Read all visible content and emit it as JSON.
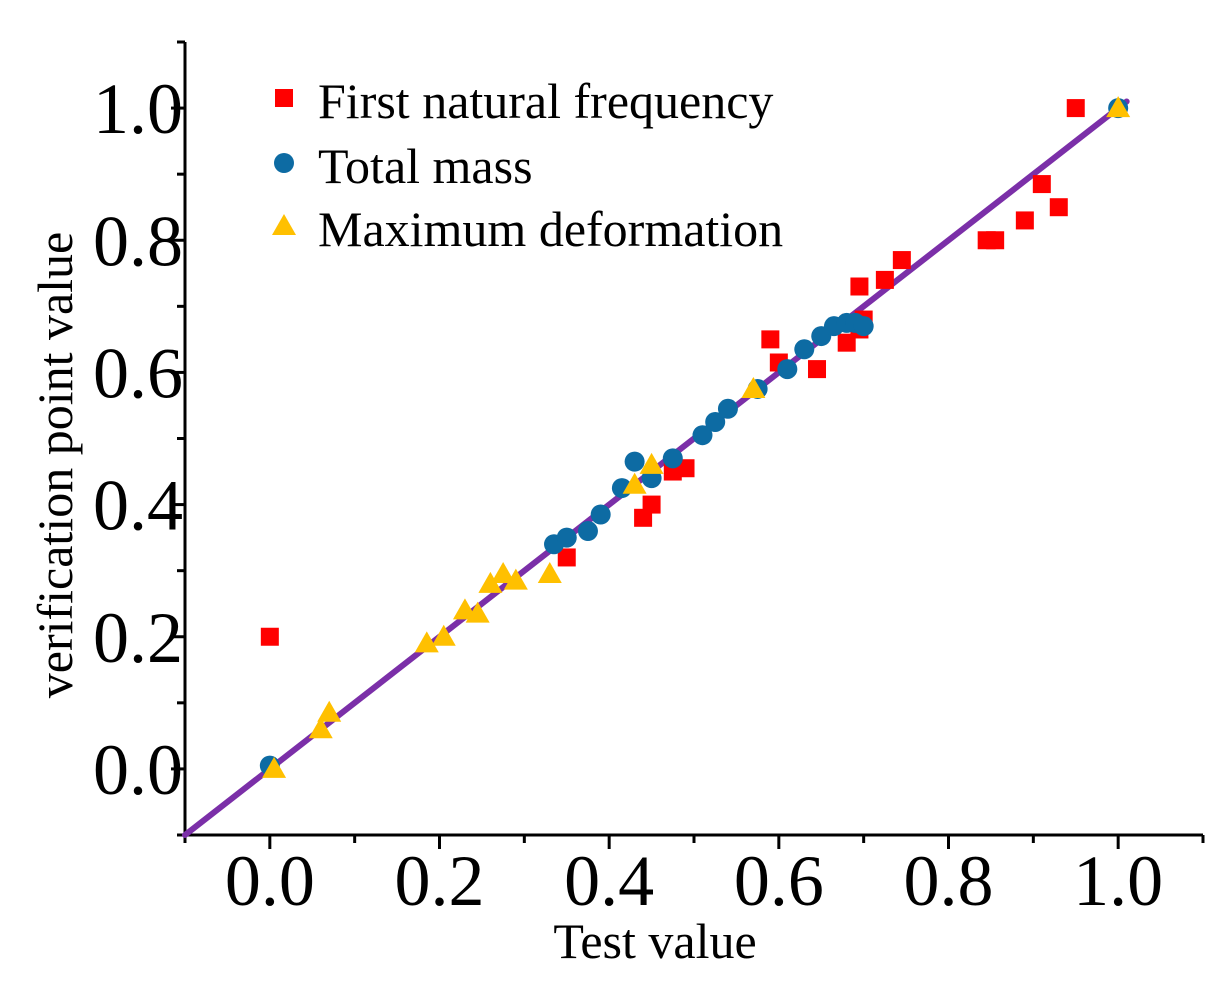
{
  "chart_data": {
    "type": "scatter",
    "title": "",
    "xlabel": "Test value",
    "ylabel": "verification point value",
    "xlim": [
      -0.1,
      1.1
    ],
    "ylim": [
      -0.1,
      1.1
    ],
    "x_ticks": [
      0.0,
      0.2,
      0.4,
      0.6,
      0.8,
      1.0
    ],
    "y_ticks": [
      0.0,
      0.2,
      0.4,
      0.6,
      0.8,
      1.0
    ],
    "x_tick_labels": [
      "0.0",
      "0.2",
      "0.4",
      "0.6",
      "0.8",
      "1.0"
    ],
    "y_tick_labels": [
      "0.0",
      "0.2",
      "0.4",
      "0.6",
      "0.8",
      "1.0"
    ],
    "legend_position": "top-left",
    "series": [
      {
        "name": "First natural frequency",
        "marker": "square",
        "color": "#ff0000",
        "points": [
          [
            0.0,
            0.2
          ],
          [
            0.35,
            0.32
          ],
          [
            0.44,
            0.38
          ],
          [
            0.45,
            0.4
          ],
          [
            0.475,
            0.45
          ],
          [
            0.49,
            0.455
          ],
          [
            0.59,
            0.65
          ],
          [
            0.6,
            0.615
          ],
          [
            0.645,
            0.605
          ],
          [
            0.68,
            0.645
          ],
          [
            0.685,
            0.675
          ],
          [
            0.695,
            0.665
          ],
          [
            0.7,
            0.68
          ],
          [
            0.695,
            0.73
          ],
          [
            0.725,
            0.74
          ],
          [
            0.745,
            0.77
          ],
          [
            0.845,
            0.8
          ],
          [
            0.855,
            0.8
          ],
          [
            0.89,
            0.83
          ],
          [
            0.91,
            0.885
          ],
          [
            0.93,
            0.85
          ],
          [
            0.95,
            1.0
          ]
        ]
      },
      {
        "name": "Total mass",
        "marker": "circle",
        "color": "#0d6ba3",
        "points": [
          [
            0.0,
            0.005
          ],
          [
            0.335,
            0.34
          ],
          [
            0.35,
            0.35
          ],
          [
            0.375,
            0.36
          ],
          [
            0.39,
            0.385
          ],
          [
            0.415,
            0.425
          ],
          [
            0.43,
            0.465
          ],
          [
            0.45,
            0.44
          ],
          [
            0.475,
            0.47
          ],
          [
            0.51,
            0.505
          ],
          [
            0.525,
            0.525
          ],
          [
            0.54,
            0.545
          ],
          [
            0.575,
            0.575
          ],
          [
            0.61,
            0.605
          ],
          [
            0.63,
            0.635
          ],
          [
            0.65,
            0.655
          ],
          [
            0.665,
            0.67
          ],
          [
            0.68,
            0.675
          ],
          [
            0.69,
            0.675
          ],
          [
            0.7,
            0.67
          ],
          [
            1.0,
            1.0
          ]
        ]
      },
      {
        "name": "Maximum deformation",
        "marker": "triangle",
        "color": "#ffc000",
        "points": [
          [
            0.005,
            0.0
          ],
          [
            0.06,
            0.06
          ],
          [
            0.07,
            0.085
          ],
          [
            0.185,
            0.19
          ],
          [
            0.205,
            0.2
          ],
          [
            0.23,
            0.24
          ],
          [
            0.245,
            0.235
          ],
          [
            0.26,
            0.28
          ],
          [
            0.275,
            0.295
          ],
          [
            0.29,
            0.285
          ],
          [
            0.33,
            0.295
          ],
          [
            0.43,
            0.43
          ],
          [
            0.45,
            0.46
          ],
          [
            0.57,
            0.575
          ],
          [
            1.0,
            1.0
          ]
        ]
      }
    ],
    "fit_line": {
      "name": "fit",
      "color": "#7b2fa8",
      "x": [
        -0.1,
        1.01
      ],
      "y": [
        -0.1,
        1.01
      ]
    }
  }
}
